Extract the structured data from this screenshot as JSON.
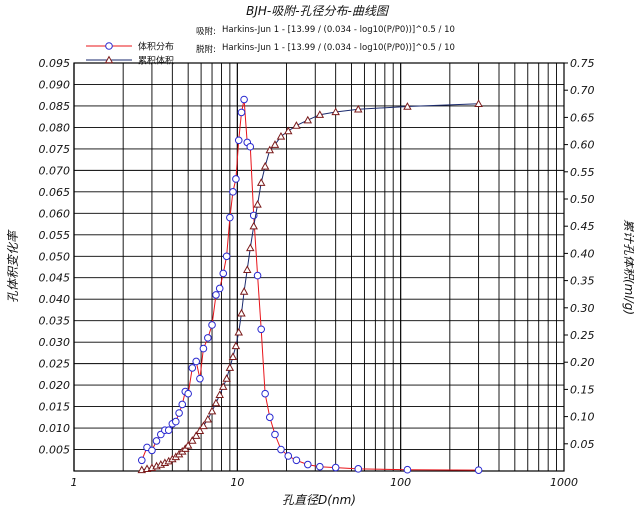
{
  "chart_data": {
    "type": "line",
    "title": "BJH-吸附-孔径分布-曲线图",
    "equations": [
      {
        "label": "吸附:",
        "text": "Harkins-Jun 1 - [13.99 / (0.034 - log10(P/P0))]^0.5 / 10"
      },
      {
        "label": "脱附:",
        "text": "Harkins-Jun 1 - [13.99 / (0.034 - log10(P/P0))]^0.5 / 10"
      }
    ],
    "xlabel": "孔直径D(nm)",
    "ylabel_left": "孔体积变化率",
    "ylabel_right": "累计孔体积(ml/g)",
    "xscale": "log",
    "xlim": [
      1,
      1000
    ],
    "ylim_left": [
      0,
      0.095
    ],
    "ylim_right": [
      0,
      0.75
    ],
    "x_ticks": [
      "1",
      "10",
      "100",
      "1000"
    ],
    "y_ticks_left": [
      "0.005",
      "0.010",
      "0.015",
      "0.020",
      "0.025",
      "0.030",
      "0.035",
      "0.040",
      "0.045",
      "0.050",
      "0.055",
      "0.060",
      "0.065",
      "0.070",
      "0.075",
      "0.080",
      "0.085",
      "0.090",
      "0.095"
    ],
    "y_ticks_right": [
      "0.05",
      "0.10",
      "0.15",
      "0.20",
      "0.25",
      "0.30",
      "0.35",
      "0.40",
      "0.45",
      "0.50",
      "0.55",
      "0.60",
      "0.65",
      "0.70",
      "0.75"
    ],
    "grid": true,
    "legend_position": "top-left",
    "series": [
      {
        "name": "体积分布",
        "axis": "left",
        "color": "#e8141a",
        "marker": "circle",
        "x": [
          2.6,
          2.8,
          3.0,
          3.2,
          3.4,
          3.6,
          3.8,
          4.0,
          4.2,
          4.4,
          4.6,
          4.8,
          5.0,
          5.3,
          5.6,
          5.9,
          6.2,
          6.6,
          7.0,
          7.4,
          7.8,
          8.2,
          8.6,
          9.0,
          9.4,
          9.8,
          10.2,
          10.6,
          11.0,
          11.5,
          12.0,
          12.6,
          13.3,
          14.0,
          14.8,
          15.8,
          17.0,
          18.5,
          20.5,
          23,
          27,
          32,
          40,
          55,
          110,
          300
        ],
        "y": [
          0.0025,
          0.0055,
          0.0048,
          0.007,
          0.0085,
          0.0095,
          0.0095,
          0.011,
          0.0115,
          0.0135,
          0.0155,
          0.0185,
          0.018,
          0.024,
          0.0255,
          0.0215,
          0.0285,
          0.031,
          0.034,
          0.041,
          0.0425,
          0.046,
          0.05,
          0.059,
          0.065,
          0.068,
          0.077,
          0.0835,
          0.0865,
          0.0765,
          0.0755,
          0.0595,
          0.0455,
          0.033,
          0.018,
          0.0125,
          0.0085,
          0.005,
          0.0035,
          0.0025,
          0.0015,
          0.001,
          0.0008,
          0.0005,
          0.0003,
          0.0002
        ]
      },
      {
        "name": "累积体积",
        "axis": "right",
        "color": "#1a2a6e",
        "marker": "triangle",
        "x": [
          2.6,
          2.8,
          3.0,
          3.2,
          3.4,
          3.6,
          3.8,
          4.0,
          4.2,
          4.4,
          4.6,
          4.8,
          5.0,
          5.3,
          5.6,
          5.9,
          6.2,
          6.6,
          7.0,
          7.4,
          7.8,
          8.2,
          8.6,
          9.0,
          9.4,
          9.8,
          10.2,
          10.6,
          11.0,
          11.5,
          12.0,
          12.6,
          13.3,
          14.0,
          14.8,
          15.8,
          17.0,
          18.5,
          20.5,
          23,
          27,
          32,
          40,
          55,
          110,
          300
        ],
        "y": [
          0.002,
          0.004,
          0.006,
          0.009,
          0.012,
          0.015,
          0.018,
          0.022,
          0.026,
          0.031,
          0.036,
          0.041,
          0.047,
          0.056,
          0.065,
          0.074,
          0.083,
          0.095,
          0.11,
          0.125,
          0.14,
          0.155,
          0.17,
          0.19,
          0.21,
          0.23,
          0.255,
          0.29,
          0.33,
          0.37,
          0.41,
          0.45,
          0.49,
          0.53,
          0.56,
          0.59,
          0.6,
          0.615,
          0.625,
          0.635,
          0.645,
          0.655,
          0.66,
          0.665,
          0.67,
          0.675
        ]
      }
    ]
  }
}
